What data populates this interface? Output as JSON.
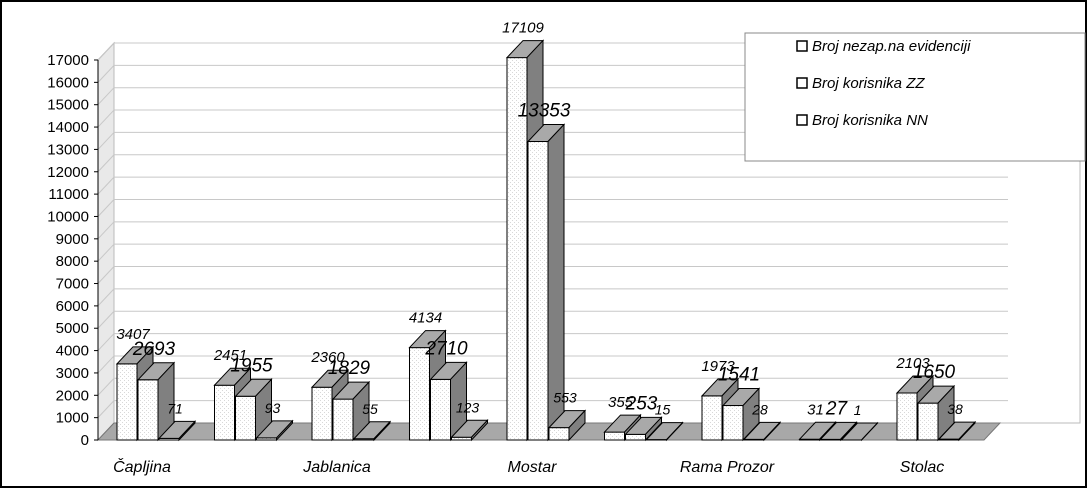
{
  "chart_data": {
    "type": "bar",
    "title": "",
    "xlabel": "",
    "ylabel": "",
    "ylim": [
      0,
      17000
    ],
    "y_ticks": [
      0,
      1000,
      2000,
      3000,
      4000,
      5000,
      6000,
      7000,
      8000,
      9000,
      10000,
      11000,
      12000,
      13000,
      14000,
      15000,
      16000,
      17000
    ],
    "grid": true,
    "three_d": true,
    "legend_position": "top-right",
    "categories": [
      "Čapljina",
      "",
      "Jablanica",
      "",
      "Mostar",
      "",
      "Rama Prozor",
      "",
      "Stolac"
    ],
    "series": [
      {
        "name": "Broj nezap.na evidenciji",
        "values": [
          3407,
          2451,
          2360,
          4134,
          17109,
          355,
          1973,
          31,
          2103
        ],
        "labels": [
          "3407",
          "2451",
          "2360",
          "4134",
          "17109",
          "355",
          "1973",
          "31",
          "2103"
        ]
      },
      {
        "name": "Broj korisnika ZZ",
        "values": [
          2693,
          1955,
          1829,
          2710,
          13353,
          253,
          1541,
          27,
          1650
        ],
        "labels": [
          "2693",
          "1955",
          "1829",
          "2710",
          "13353",
          "253",
          "1541",
          "27",
          "1650"
        ]
      },
      {
        "name": "Broj korisnika  NN",
        "values": [
          71,
          93,
          55,
          123,
          553,
          15,
          28,
          1,
          38
        ],
        "labels": [
          "71",
          "93",
          "55",
          "123",
          "553",
          "15",
          "28",
          "1",
          "38"
        ]
      }
    ],
    "colors": {
      "frame": "#000000",
      "bar_front": "#ffffff",
      "bar_texture": "#d8d8d8",
      "bar_top": "#a9a9a9",
      "bar_side": "#808080",
      "wall": "#ffffff",
      "wall_side": "#e9e9e9",
      "floor": "#a8a8a8",
      "grid": "#c8c8c8"
    }
  }
}
